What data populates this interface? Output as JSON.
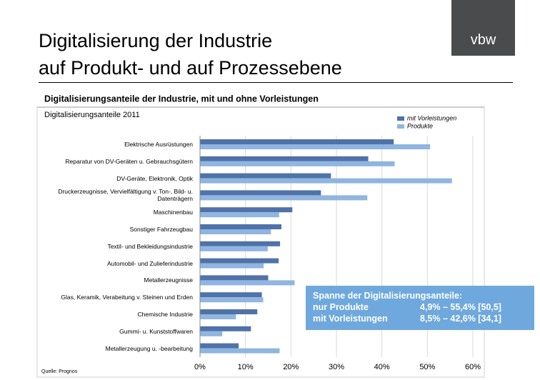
{
  "header": {
    "title_lines": [
      "Digitalisierung der Industrie",
      "auf Produkt- und auf Prozessebene"
    ],
    "logo": "vbw"
  },
  "chart_data": {
    "type": "hbar",
    "title": "Digitalisierungsanteile der Industrie, mit und ohne Vorleistungen",
    "subtitle": "Digitalisierungsanteile 2011",
    "categories": [
      "Elektrische Ausrüstungen",
      "Reparatur von DV-Geräten u. Gebrauchsgütern",
      "DV-Geräte, Elektronik, Optik",
      "Druckerzeugnisse, Vervielfältigung v. Ton-, Bild- u. Datenträgern",
      "Maschinenbau",
      "Sonstiger Fahrzeugbau",
      "Textil- und Bekleidungsindustrie",
      "Automobil- und Zulieferindustrie",
      "Metallerzeugnisse",
      "Glas, Keramik, Verabeitung v. Steinen und Erden",
      "Chemische Industrie",
      "Gummi- u. Kunststoffwaren",
      "Metallerzeugung u. -bearbeitung"
    ],
    "series": [
      {
        "name": "mit Vorleistungen",
        "color": "#4f72a8",
        "values": [
          42.6,
          37.0,
          28.8,
          26.6,
          20.3,
          17.9,
          17.6,
          17.3,
          15.0,
          13.6,
          12.6,
          11.2,
          8.5
        ]
      },
      {
        "name": "Produkte",
        "color": "#8fb5e0",
        "values": [
          50.6,
          42.8,
          55.4,
          36.8,
          17.4,
          15.6,
          14.9,
          14.0,
          20.8,
          13.9,
          7.9,
          4.9,
          17.5
        ]
      }
    ],
    "xlim": [
      0,
      60
    ],
    "xticks": [
      {
        "value": 0,
        "label": "0%"
      },
      {
        "value": 10,
        "label": "10%"
      },
      {
        "value": 20,
        "label": "20%"
      },
      {
        "value": 30,
        "label": "30%"
      },
      {
        "value": 40,
        "label": "40%"
      },
      {
        "value": 50,
        "label": "50%"
      },
      {
        "value": 60,
        "label": "60%"
      }
    ],
    "grid": true,
    "legend": "top-right",
    "source": "Quelle: Prognos",
    "annotation": {
      "title": "Spanne der Digitalisierungsanteile:",
      "rows": [
        [
          "nur Produkte",
          "4,9% – 55,4% [50,5]"
        ],
        [
          "mit Vorleistungen",
          "8,5% – 42,6% [34,1]"
        ]
      ]
    }
  }
}
